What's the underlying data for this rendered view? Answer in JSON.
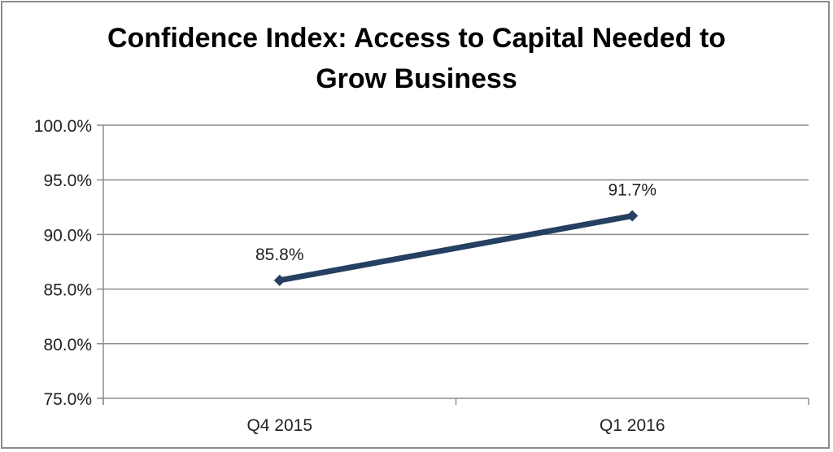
{
  "chart_data": {
    "type": "line",
    "title_lines": [
      "Confidence Index: Access to Capital Needed to",
      "Grow Business"
    ],
    "categories": [
      "Q4 2015",
      "Q1 2016"
    ],
    "values": [
      85.8,
      91.7
    ],
    "data_labels": [
      "85.8%",
      "91.7%"
    ],
    "ylim": [
      75,
      100
    ],
    "yticks": [
      100,
      95,
      90,
      85,
      80,
      75
    ],
    "ytick_labels": [
      "100.0%",
      "95.0%",
      "90.0%",
      "85.0%",
      "80.0%",
      "75.0%"
    ],
    "grid": true,
    "legend": "none",
    "line_color": "#254061",
    "marker": "diamond"
  }
}
